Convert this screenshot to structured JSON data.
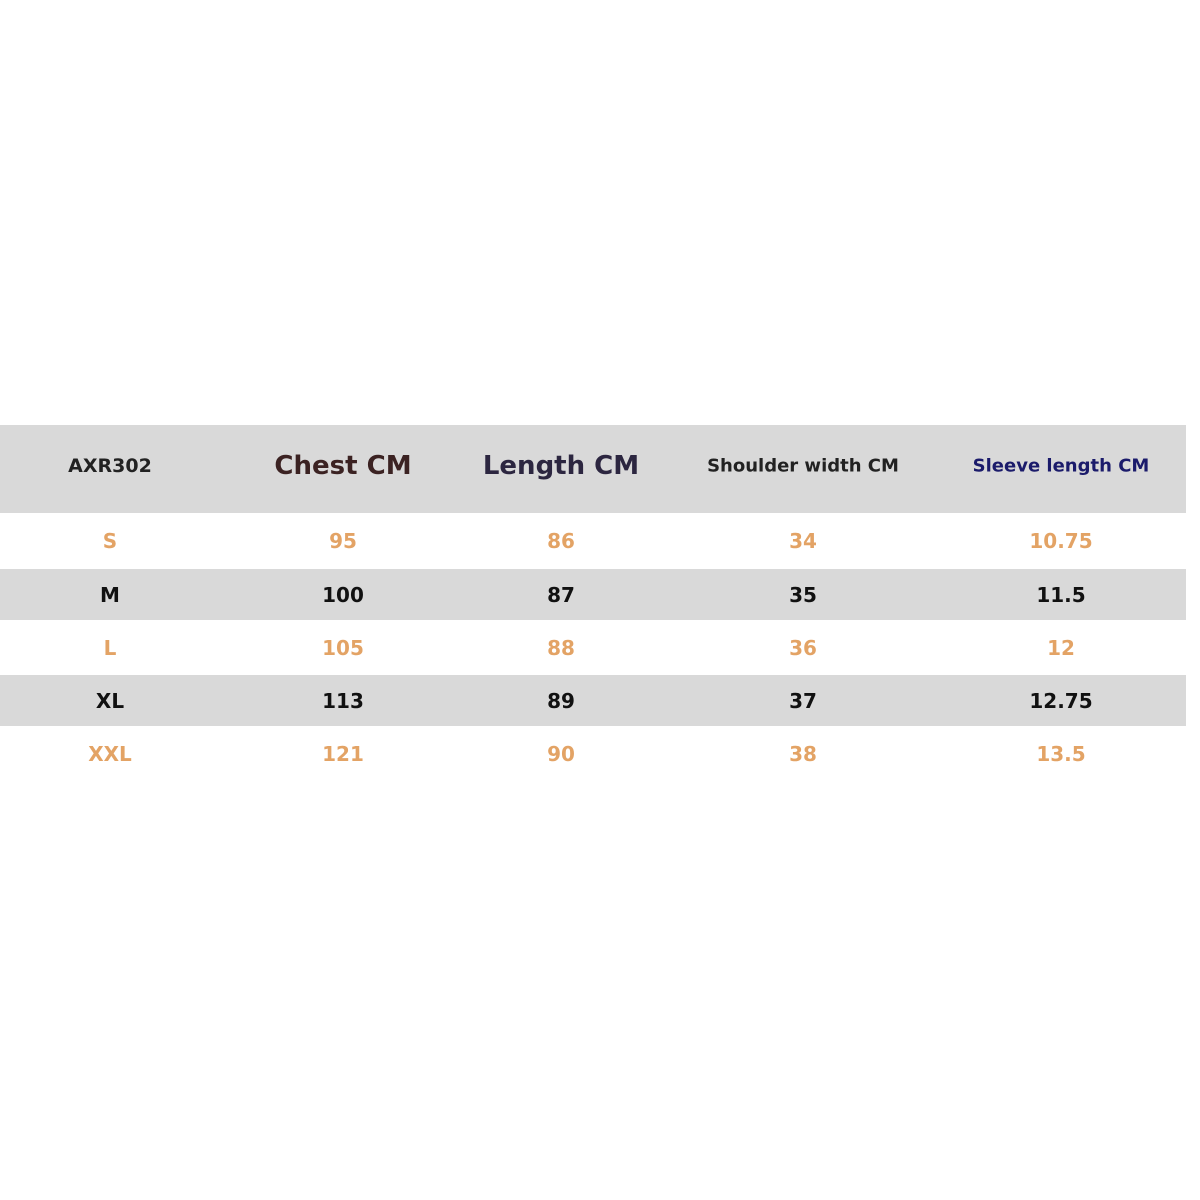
{
  "table": {
    "header": [
      "AXR302",
      "Chest CM",
      "Length CM",
      "Shoulder width CM",
      "Sleeve length CM"
    ],
    "rows": [
      [
        "S",
        "95",
        "86",
        "34",
        "10.75"
      ],
      [
        "M",
        "100",
        "87",
        "35",
        "11.5"
      ],
      [
        "L",
        "105",
        "88",
        "36",
        "12"
      ],
      [
        "XL",
        "113",
        "89",
        "37",
        "12.75"
      ],
      [
        "XXL",
        "121",
        "90",
        "38",
        "13.5"
      ]
    ]
  }
}
